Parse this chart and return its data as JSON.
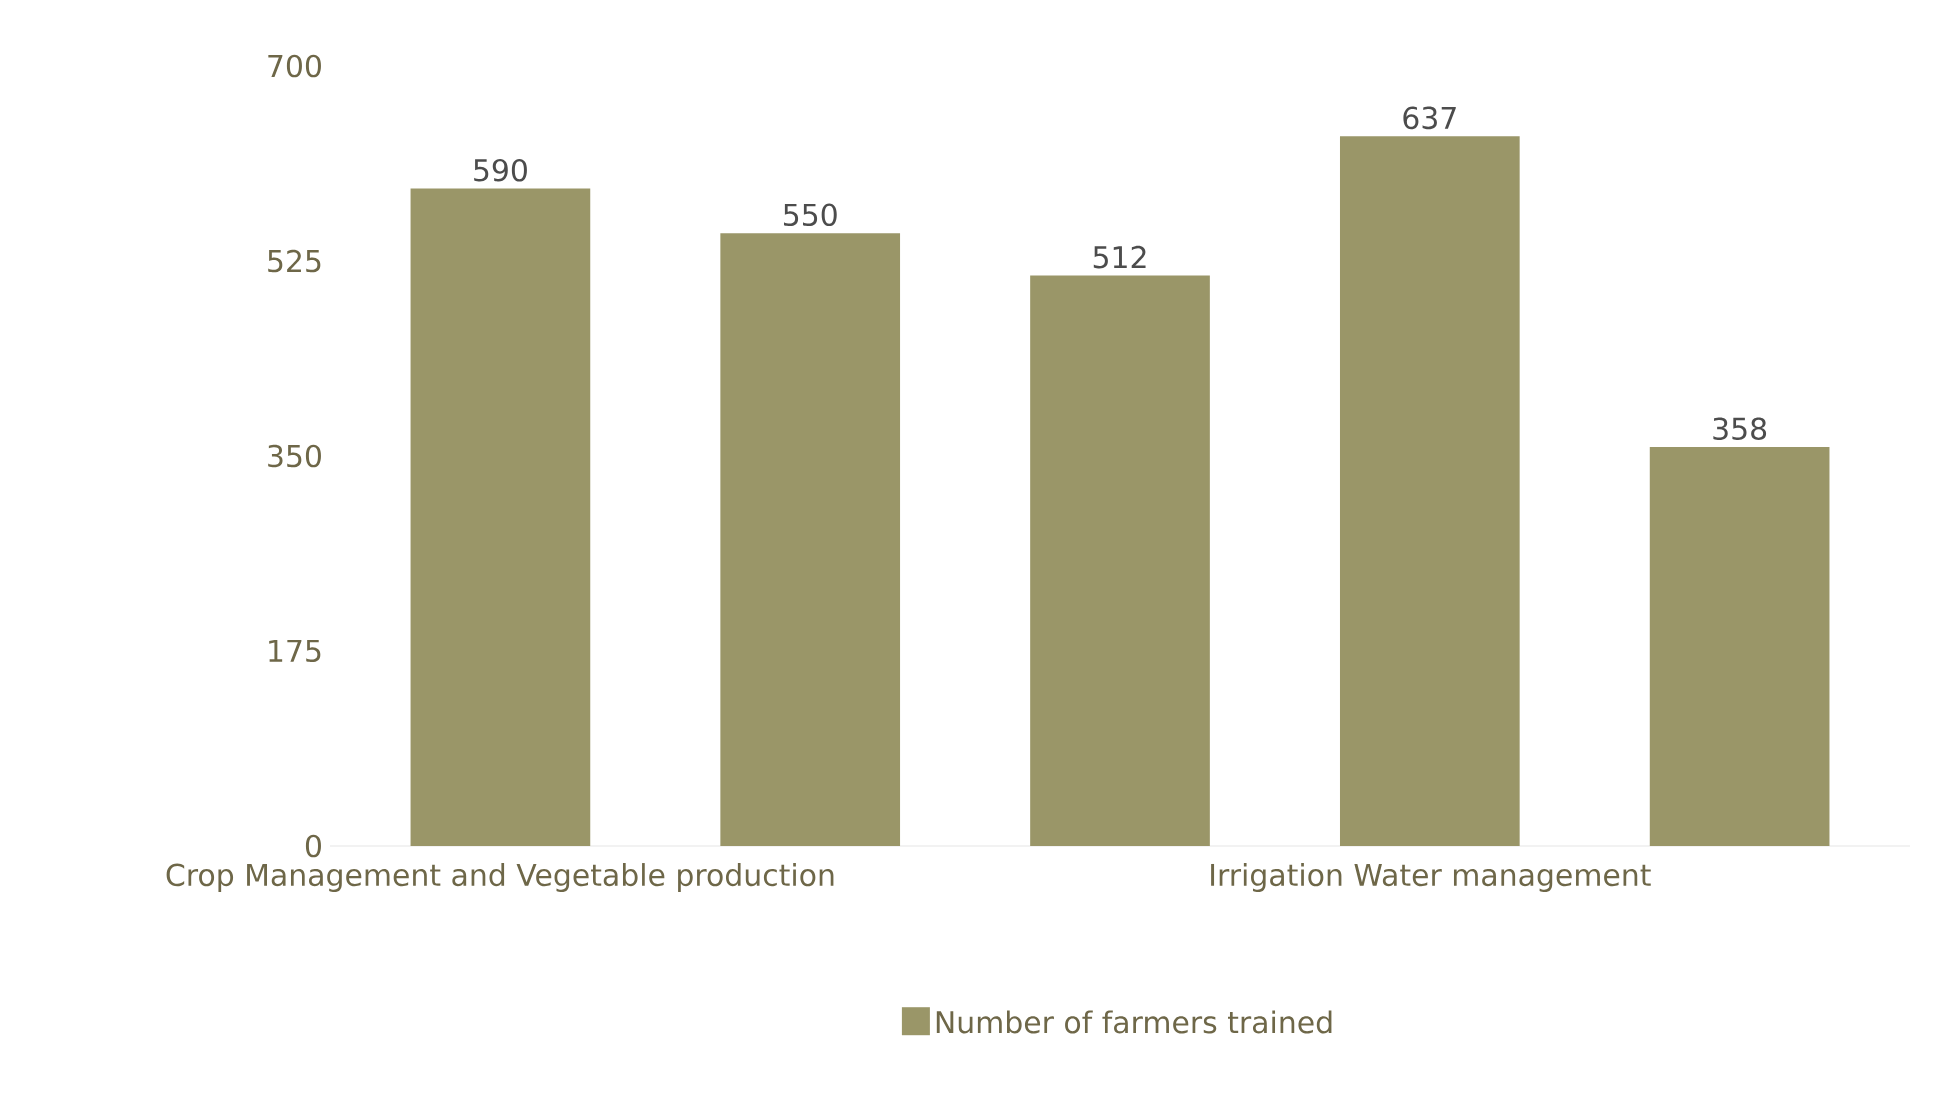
{
  "chart_data": {
    "type": "bar",
    "categories": [
      "Crop Management and Vegetable production",
      null,
      null,
      "Irrigation Water management",
      null
    ],
    "series": [
      {
        "name": "Number of farmers trained",
        "color": "#9a9668",
        "values": [
          590,
          550,
          512,
          637,
          358
        ]
      }
    ],
    "ylim": [
      0,
      700
    ],
    "yticks": [
      0,
      175,
      350,
      525,
      700
    ],
    "grid": false,
    "legend": "bottom",
    "data_labels": true
  }
}
